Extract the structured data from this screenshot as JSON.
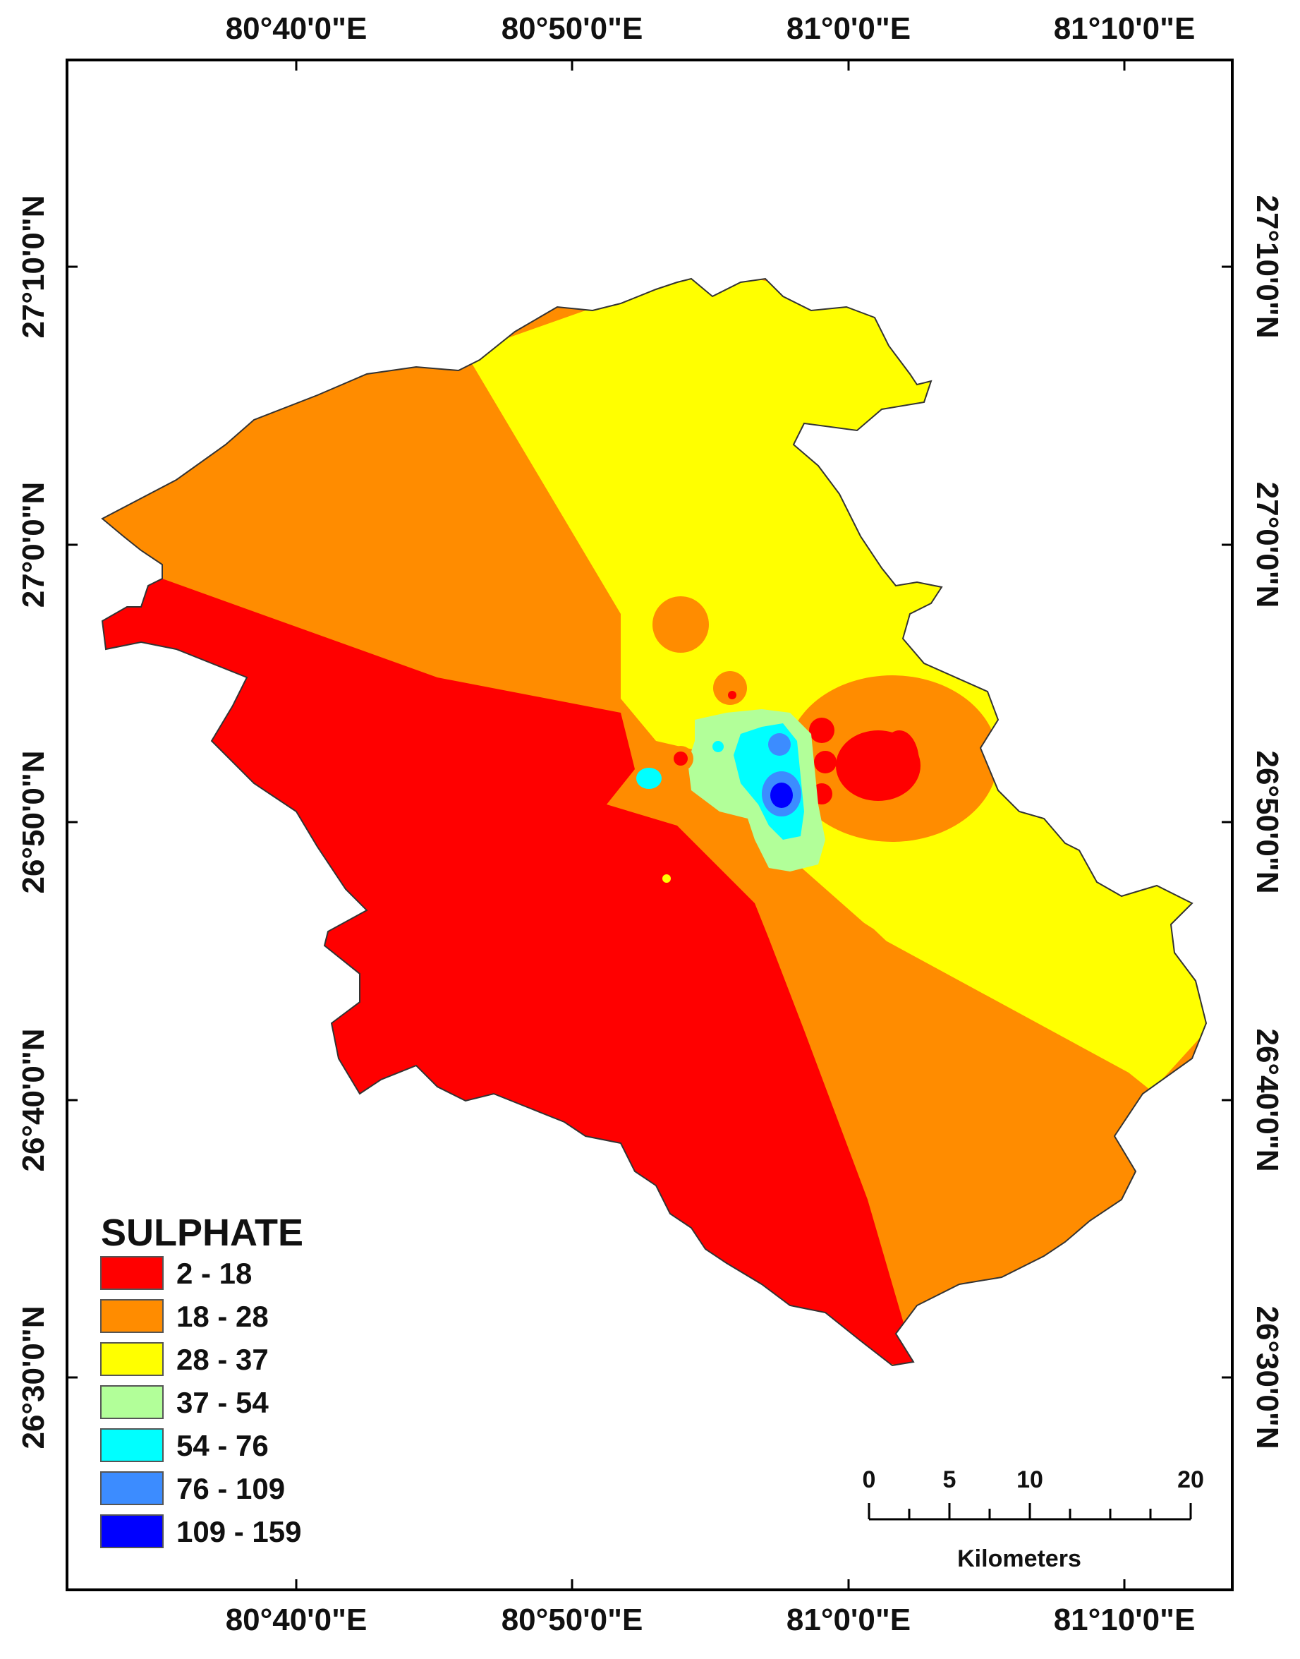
{
  "map": {
    "legend": {
      "title": "SULPHATE",
      "items": [
        {
          "label": "2 - 18",
          "color": "#ff0000"
        },
        {
          "label": "18 - 28",
          "color": "#ff8c00"
        },
        {
          "label": "28 - 37",
          "color": "#ffff00"
        },
        {
          "label": "37 - 54",
          "color": "#b2ff99"
        },
        {
          "label": "54 - 76",
          "color": "#00ffff"
        },
        {
          "label": "76 - 109",
          "color": "#3c8cff"
        },
        {
          "label": "109 - 159",
          "color": "#0000ff"
        }
      ]
    },
    "longitude_labels": [
      "80°40'0\"E",
      "80°50'0\"E",
      "81°0'0\"E",
      "81°10'0\"E"
    ],
    "latitude_labels": [
      "27°10'0\"N",
      "27°0'0\"N",
      "26°50'0\"N",
      "26°40'0\"N",
      "26°30'0\"N"
    ],
    "scale_bar": {
      "unit": "Kilometers",
      "ticks": [
        "0",
        "5",
        "10",
        "20"
      ]
    }
  }
}
